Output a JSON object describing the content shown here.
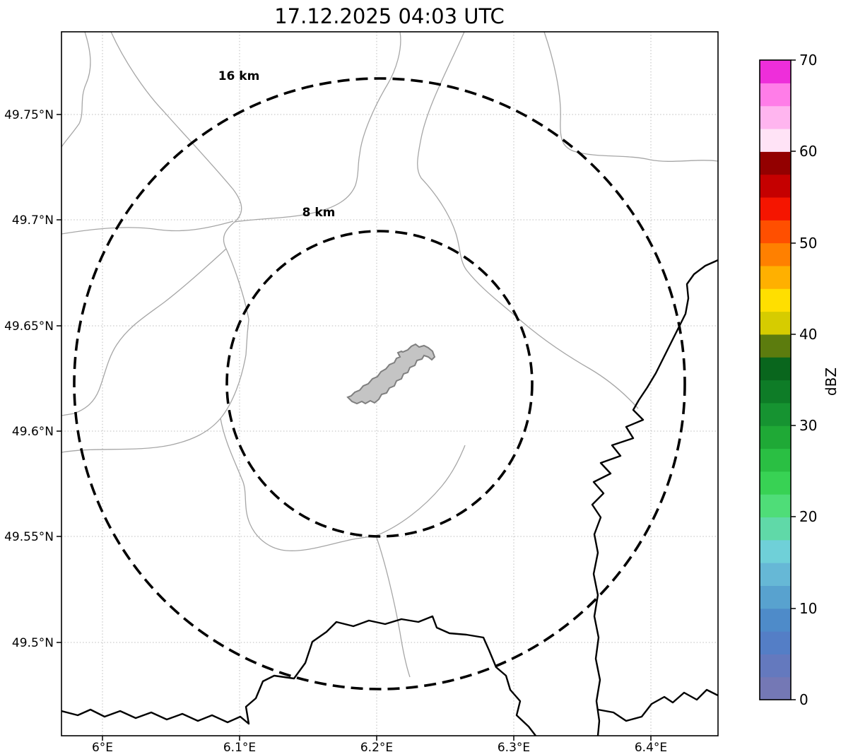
{
  "chart_data": {
    "type": "map",
    "title": "17.12.2025 04:03 UTC",
    "subtitle": "",
    "xlabel": "",
    "ylabel": "",
    "x_axis": {
      "ticks": [
        "6°E",
        "6.1°E",
        "6.2°E",
        "6.3°E",
        "6.4°E"
      ],
      "range_deg_east": [
        5.97,
        6.45
      ]
    },
    "y_axis": {
      "ticks": [
        "49.75°N",
        "49.7°N",
        "49.65°N",
        "49.6°N",
        "49.55°N",
        "49.5°N"
      ],
      "range_deg_north": [
        49.456,
        49.789
      ]
    },
    "grid": true,
    "radar_site": {
      "lon_deg_east": 6.2,
      "lat_deg_north": 49.62
    },
    "range_rings": [
      {
        "label": "8 km",
        "radius_km": 8
      },
      {
        "label": "16 km",
        "radius_km": 16
      }
    ],
    "echoes": [],
    "colorbar": {
      "label": "dBZ",
      "min": 0,
      "max": 70,
      "ticks": [
        0,
        10,
        20,
        30,
        40,
        50,
        60,
        70
      ],
      "tick_labels": [
        "0",
        "10",
        "20",
        "30",
        "40",
        "50",
        "60",
        "70"
      ],
      "colors_bottom_to_top": [
        "#7478b5",
        "#6479be",
        "#547ec6",
        "#4e8bc9",
        "#58a2cf",
        "#66b8d6",
        "#6fd0d8",
        "#60d9a8",
        "#4fdd78",
        "#38d254",
        "#2abf43",
        "#1fa936",
        "#169331",
        "#0e7c27",
        "#09661d",
        "#5c7c0e",
        "#d6cc00",
        "#ffdf00",
        "#ffb000",
        "#ff8000",
        "#ff4f00",
        "#f51500",
        "#c50000",
        "#930000",
        "#ffe3f6",
        "#ffb5ef",
        "#ff7de8",
        "#ee2eda"
      ]
    },
    "map_features": {
      "thick_border_color": "#000000",
      "thin_border_color": "#a6a6a6",
      "airport_fill": "#c4c4c4",
      "airport_stroke": "#7f7f7f"
    }
  }
}
